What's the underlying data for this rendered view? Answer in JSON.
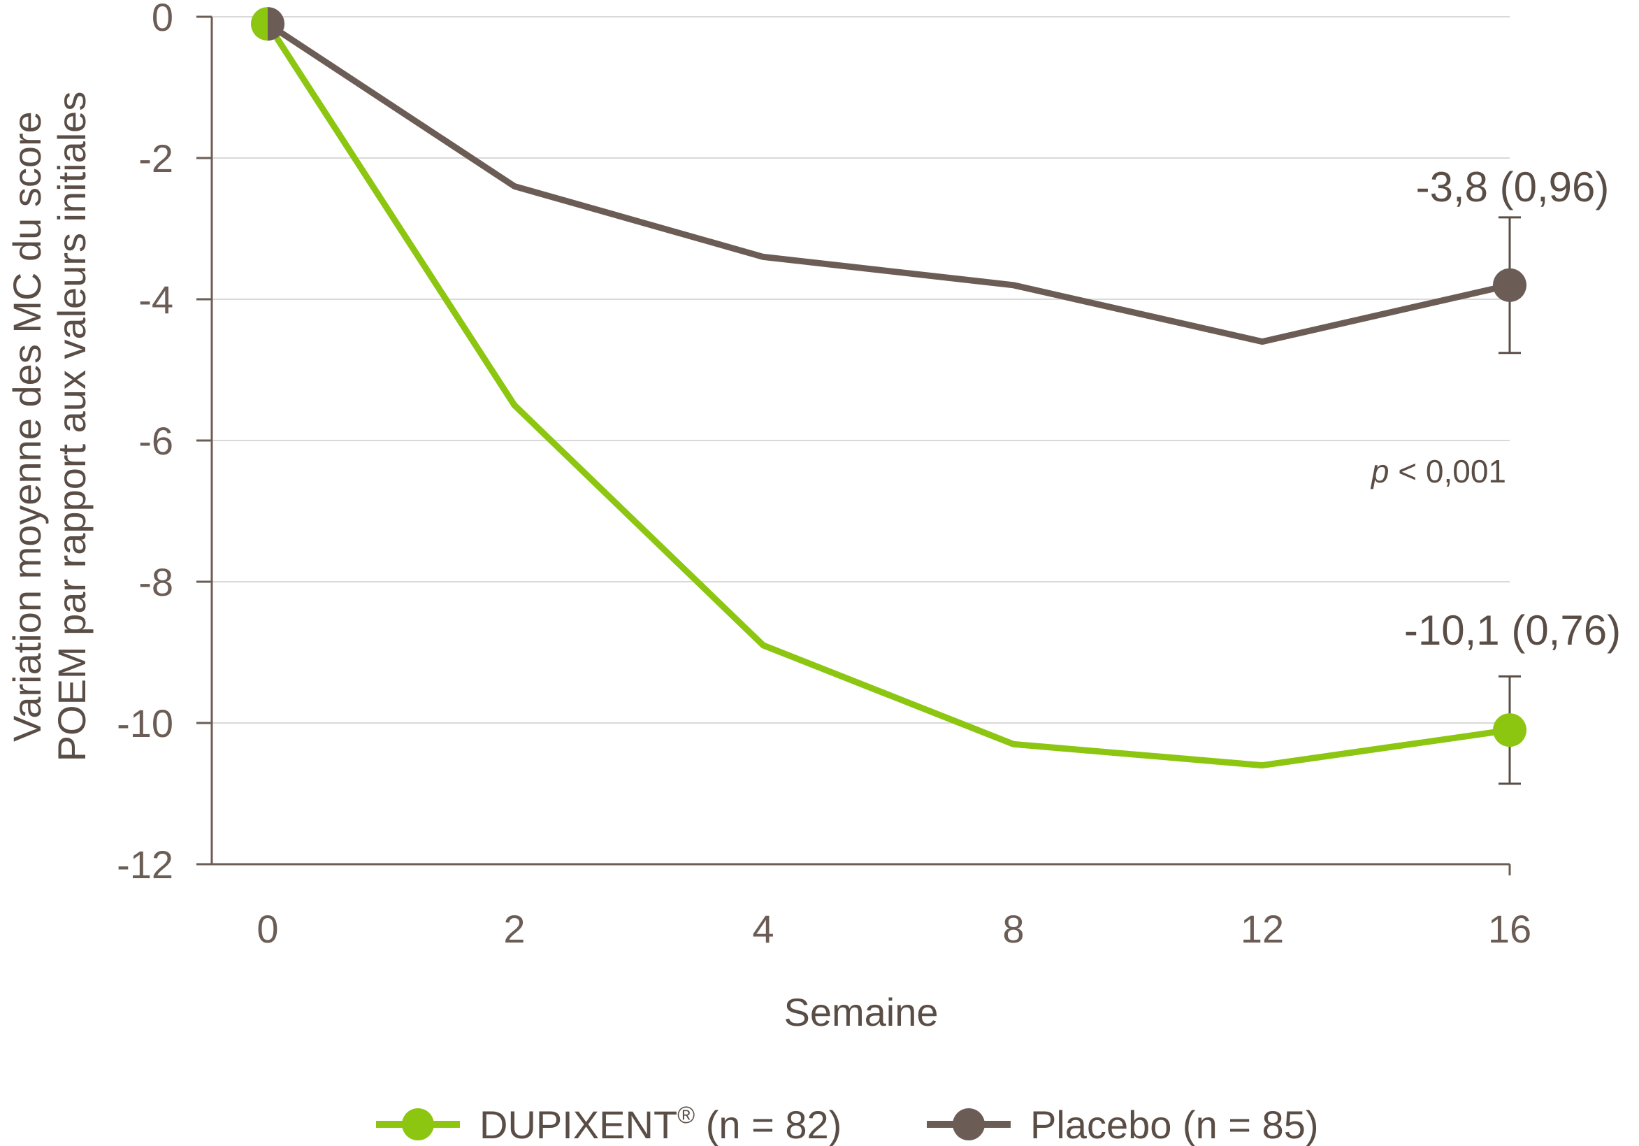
{
  "chart_data": {
    "type": "line",
    "x": [
      0,
      2,
      4,
      8,
      12,
      16
    ],
    "xlabel": "Semaine",
    "ylabel_lines": [
      "Variation moyenne des MC du score",
      "POEM par rapport aux valeurs initiales"
    ],
    "ylim": [
      -12,
      0
    ],
    "yticks": [
      0,
      -2,
      -4,
      -6,
      -8,
      -10,
      -12
    ],
    "ytick_labels": [
      "0",
      "-2",
      "-4",
      "-6",
      "-8",
      "-10",
      "-12"
    ],
    "xtick_labels": [
      "0",
      "2",
      "4",
      "8",
      "12",
      "16"
    ],
    "grid": "horizontal",
    "series": [
      {
        "name": "DUPIXENT",
        "name_sup": "®",
        "name_suffix": " (n = 82)",
        "color": "#8cc610",
        "values": [
          -0.1,
          -5.5,
          -8.9,
          -10.3,
          -10.6,
          -10.1
        ],
        "error": 0.76,
        "end_label": "-10,1 (0,76)"
      },
      {
        "name": "Placebo (n = 85)",
        "color": "#6b5d55",
        "values": [
          -0.1,
          -2.4,
          -3.4,
          -3.8,
          -4.6,
          -3.8
        ],
        "error": 0.96,
        "end_label": "-3,8 (0,96)"
      }
    ],
    "annotation": {
      "italic": "p",
      "text": " < 0,001"
    },
    "legend_position": "bottom"
  }
}
